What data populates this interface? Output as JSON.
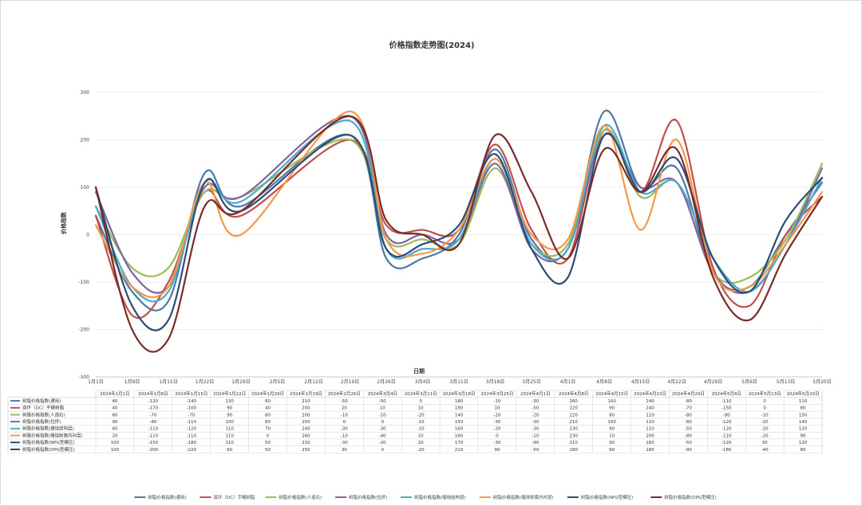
{
  "chart_data": {
    "type": "line",
    "title": "价格指数走势图(2024)",
    "xlabel": "日期",
    "ylabel": "价格指数",
    "ylim": [
      -300,
      300
    ],
    "y_ticks": [
      300,
      200,
      100,
      0,
      -100,
      -200,
      -300
    ],
    "x_axis_ticks": [
      "1月1日",
      "1月8日",
      "1月15日",
      "1月22日",
      "1月29日",
      "2月5日",
      "2月12日",
      "2月19日",
      "2月26日",
      "3月4日",
      "3月11日",
      "3月18日",
      "3月25日",
      "4月1日",
      "4月8日",
      "4月15日",
      "4月22日",
      "4月29日",
      "5月6日",
      "5月13日",
      "5月20日"
    ],
    "categories": [
      "2024年1月1日",
      "2024年1月8日",
      "2024年1月15日",
      "2024年1月22日",
      "2024年1月29日",
      "2024年2月19日",
      "2024年2月26日",
      "2024年3月4日",
      "2024年3月11日",
      "2024年3月18日",
      "2024年3月25日",
      "2024年4月1日",
      "2024年4月8日",
      "2024年4月15日",
      "2024年4月22日",
      "2024年4月29日",
      "2024年5月6日",
      "2024年5月13日",
      "2024年5月20日"
    ],
    "grid": true,
    "legend_position": "bottom",
    "series": [
      {
        "name": "树脂价格指数(通用)",
        "color": "#4e79a7",
        "values": [
          40,
          -120,
          -140,
          130,
          60,
          210,
          -50,
          -50,
          0,
          180,
          -10,
          -30,
          260,
          100,
          140,
          -80,
          -110,
          0,
          110
        ]
      },
      {
        "name": "双环（DC）手糊树脂",
        "color": "#c0504d",
        "values": [
          40,
          -170,
          -100,
          90,
          40,
          200,
          20,
          10,
          10,
          190,
          10,
          -50,
          220,
          90,
          240,
          -70,
          -150,
          0,
          80
        ]
      },
      {
        "name": "树脂价格指数(人造石)",
        "color": "#9bbb59",
        "values": [
          60,
          -70,
          -70,
          90,
          80,
          200,
          -10,
          -10,
          -20,
          140,
          -20,
          -20,
          220,
          80,
          110,
          -80,
          -90,
          -10,
          150
        ]
      },
      {
        "name": "树脂价格指数(拉挤)",
        "color": "#8064a2",
        "values": [
          90,
          -80,
          -110,
          100,
          80,
          250,
          0,
          0,
          -10,
          150,
          -30,
          -30,
          210,
          100,
          110,
          -80,
          -120,
          -20,
          140
        ]
      },
      {
        "name": "树脂价格指数(缠绕结构层)",
        "color": "#4bacc6",
        "values": [
          60,
          -110,
          -120,
          110,
          70,
          240,
          -30,
          -30,
          -10,
          160,
          -20,
          -30,
          230,
          90,
          110,
          -50,
          -120,
          -20,
          120
        ]
      },
      {
        "name": "树脂价格指数(缠绕耐腐内衬层)",
        "color": "#f79646",
        "values": [
          20,
          -110,
          -110,
          110,
          0,
          260,
          -10,
          -40,
          10,
          160,
          0,
          -10,
          230,
          10,
          200,
          -80,
          -110,
          -20,
          90
        ]
      },
      {
        "name": "树脂价格指数(NPG型模压)",
        "color": "#2c4d75",
        "values": [
          100,
          -150,
          -180,
          110,
          50,
          210,
          -30,
          -20,
          20,
          170,
          -30,
          -90,
          210,
          90,
          160,
          -50,
          -120,
          30,
          120
        ]
      },
      {
        "name": "树脂价格指数(DPG型模压)",
        "color": "#772c2a",
        "values": [
          100,
          -200,
          -220,
          60,
          50,
          250,
          30,
          0,
          -20,
          210,
          90,
          -50,
          180,
          90,
          180,
          -90,
          -180,
          -40,
          80
        ]
      }
    ]
  }
}
